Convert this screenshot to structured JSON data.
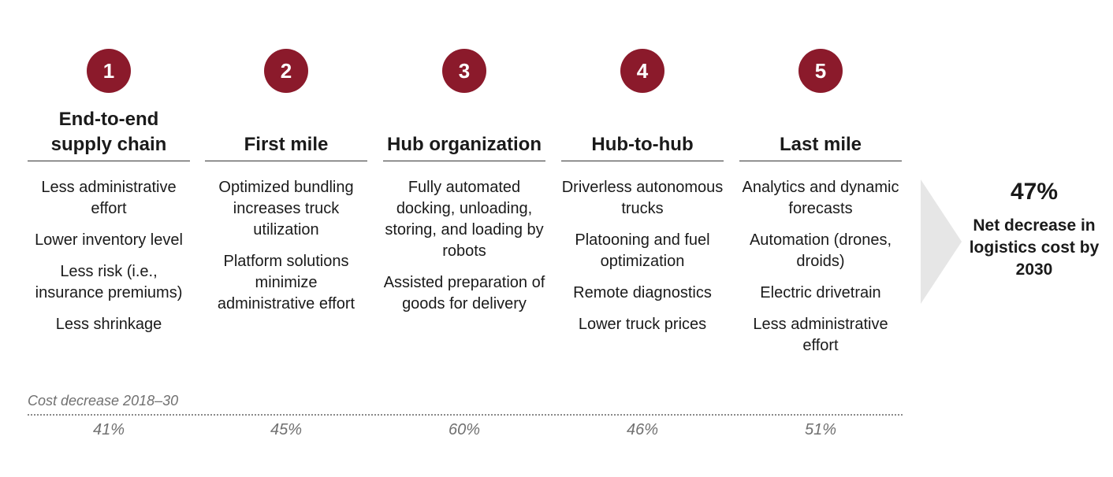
{
  "steps": [
    {
      "number": "1",
      "title": "End-to-end supply chain",
      "items": [
        "Less administrative effort",
        "Lower inventory level",
        "Less risk (i.e., insurance premiums)",
        "Less shrinkage"
      ],
      "cost_decrease": "41%"
    },
    {
      "number": "2",
      "title": "First mile",
      "items": [
        "Optimized bundling increases truck utilization",
        "Platform solutions minimize administrative effort"
      ],
      "cost_decrease": "45%"
    },
    {
      "number": "3",
      "title": "Hub organization",
      "items": [
        "Fully automated docking, unloading, storing, and loading by robots",
        "Assisted preparation of goods for delivery"
      ],
      "cost_decrease": "60%"
    },
    {
      "number": "4",
      "title": "Hub-to-hub",
      "items": [
        "Driverless autonomous trucks",
        "Platooning and fuel optimization",
        "Remote diagnostics",
        "Lower truck prices"
      ],
      "cost_decrease": "46%"
    },
    {
      "number": "5",
      "title": "Last mile",
      "items": [
        "Analytics and dynamic forecasts",
        "Automation (drones, droids)",
        "Electric drivetrain",
        "Less administrative effort"
      ],
      "cost_decrease": "51%"
    }
  ],
  "cost_row_label": "Cost decrease 2018–30",
  "total": {
    "value": "47%",
    "label": "Net decrease in logistics cost by 2030"
  },
  "colors": {
    "accent": "#8b1a2b",
    "arrow": "#e6e6e6",
    "muted_text": "#707070"
  }
}
